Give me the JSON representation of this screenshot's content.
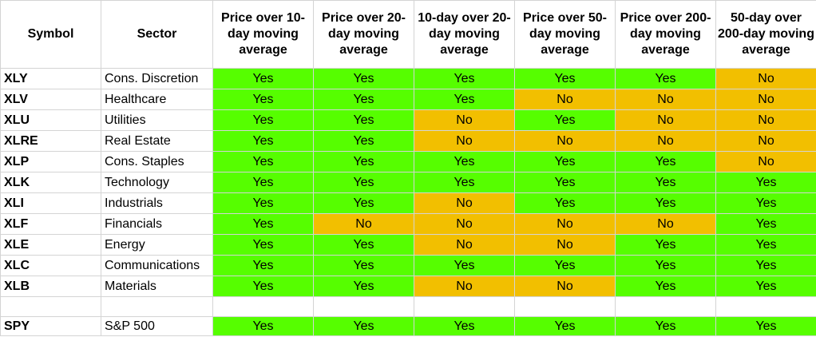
{
  "headers": {
    "symbol": "Symbol",
    "sector": "Sector",
    "p10": "Price over 10-day moving average",
    "p20": "Price over 20-day moving average",
    "m10_20": "10-day over 20-day moving average",
    "p50": "Price over 50-day moving average",
    "p200": "Price over 200-day moving average",
    "m50_200": "50-day over 200-day moving average"
  },
  "colors": {
    "yes": "#56fe00",
    "no": "#f2bf00"
  },
  "rows": [
    {
      "symbol": "XLY",
      "sector": "Cons. Discretion",
      "values": [
        "Yes",
        "Yes",
        "Yes",
        "Yes",
        "Yes",
        "No"
      ]
    },
    {
      "symbol": "XLV",
      "sector": "Healthcare",
      "values": [
        "Yes",
        "Yes",
        "Yes",
        "No",
        "No",
        "No"
      ]
    },
    {
      "symbol": "XLU",
      "sector": "Utilities",
      "values": [
        "Yes",
        "Yes",
        "No",
        "Yes",
        "No",
        "No"
      ]
    },
    {
      "symbol": "XLRE",
      "sector": "Real Estate",
      "values": [
        "Yes",
        "Yes",
        "No",
        "No",
        "No",
        "No"
      ]
    },
    {
      "symbol": "XLP",
      "sector": "Cons. Staples",
      "values": [
        "Yes",
        "Yes",
        "Yes",
        "Yes",
        "Yes",
        "No"
      ]
    },
    {
      "symbol": "XLK",
      "sector": "Technology",
      "values": [
        "Yes",
        "Yes",
        "Yes",
        "Yes",
        "Yes",
        "Yes"
      ]
    },
    {
      "symbol": "XLI",
      "sector": "Industrials",
      "values": [
        "Yes",
        "Yes",
        "No",
        "Yes",
        "Yes",
        "Yes"
      ]
    },
    {
      "symbol": "XLF",
      "sector": "Financials",
      "values": [
        "Yes",
        "No",
        "No",
        "No",
        "No",
        "Yes"
      ]
    },
    {
      "symbol": "XLE",
      "sector": "Energy",
      "values": [
        "Yes",
        "Yes",
        "No",
        "No",
        "Yes",
        "Yes"
      ]
    },
    {
      "symbol": "XLC",
      "sector": "Communications",
      "values": [
        "Yes",
        "Yes",
        "Yes",
        "Yes",
        "Yes",
        "Yes"
      ]
    },
    {
      "symbol": "XLB",
      "sector": "Materials",
      "values": [
        "Yes",
        "Yes",
        "No",
        "No",
        "Yes",
        "Yes"
      ]
    }
  ],
  "benchmark": {
    "symbol": "SPY",
    "sector": "S&P 500",
    "values": [
      "Yes",
      "Yes",
      "Yes",
      "Yes",
      "Yes",
      "Yes"
    ]
  }
}
